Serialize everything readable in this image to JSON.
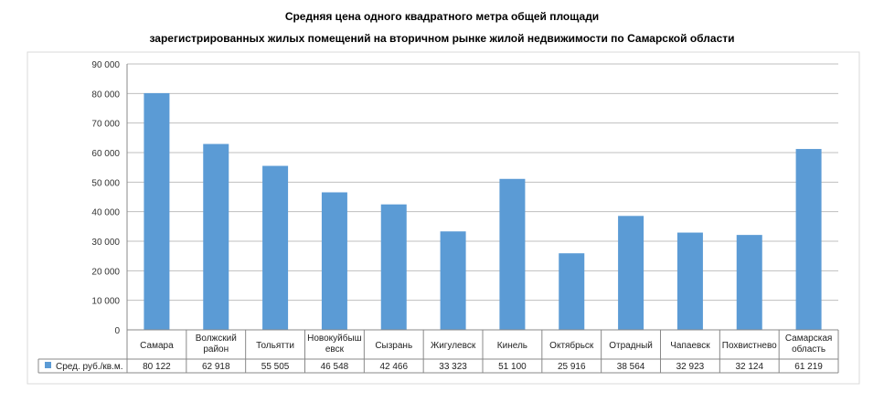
{
  "chart_data": {
    "type": "bar",
    "title_line1": "Средняя цена одного квадратного метра общей площади",
    "title_line2": "зарегистрированных жилых помещений на вторичном рынке жилой недвижимости по Самарской области",
    "categories": [
      [
        "Самара"
      ],
      [
        "Волжский",
        "район"
      ],
      [
        "Тольятти"
      ],
      [
        "Новокуйбыш",
        "евск"
      ],
      [
        "Сызрань"
      ],
      [
        "Жигулевск"
      ],
      [
        "Кинель"
      ],
      [
        "Октябрьск"
      ],
      [
        "Отрадный"
      ],
      [
        "Чапаевск"
      ],
      [
        "Похвистнево"
      ],
      [
        "Самарская",
        "область"
      ]
    ],
    "series": [
      {
        "name": "Сред. руб./кв.м.",
        "values": [
          80122,
          62918,
          55505,
          46548,
          42466,
          33323,
          51100,
          25916,
          38564,
          32923,
          32124,
          61219
        ],
        "labels": [
          "80 122",
          "62 918",
          "55 505",
          "46 548",
          "42 466",
          "33 323",
          "51 100",
          "25 916",
          "38 564",
          "32 923",
          "32 124",
          "61 219"
        ]
      }
    ],
    "ylim": [
      0,
      90000
    ],
    "yticks": [
      0,
      10000,
      20000,
      30000,
      40000,
      50000,
      60000,
      70000,
      80000,
      90000
    ],
    "ytick_labels": [
      "0",
      "10 000",
      "20 000",
      "30 000",
      "40 000",
      "50 000",
      "60 000",
      "70 000",
      "80 000",
      "90 000"
    ],
    "grid": true,
    "legend": "data-table",
    "colors": {
      "bar": "#5b9bd5",
      "grid": "#bfbfbf"
    }
  }
}
